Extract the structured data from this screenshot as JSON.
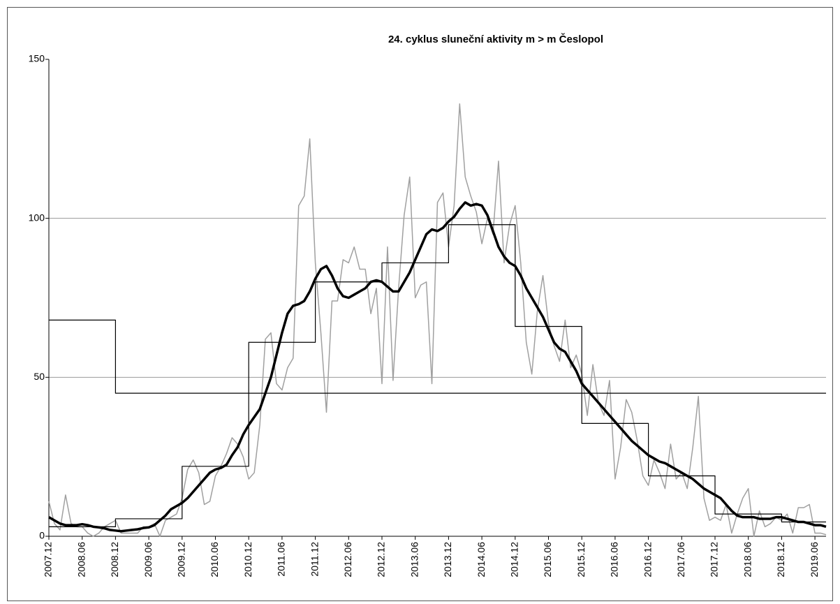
{
  "chart_data": {
    "type": "line",
    "title": "24. cyklus sluneční aktivity m > m Česlopol",
    "categories": [
      "2007.12",
      null,
      null,
      null,
      null,
      null,
      "2008.06",
      null,
      null,
      null,
      null,
      null,
      "2008.12",
      null,
      null,
      null,
      null,
      null,
      "2009.06",
      null,
      null,
      null,
      null,
      null,
      "2009.12",
      null,
      null,
      null,
      null,
      null,
      "2010.06",
      null,
      null,
      null,
      null,
      null,
      "2010.12",
      null,
      null,
      null,
      null,
      null,
      "2011.06",
      null,
      null,
      null,
      null,
      null,
      "2011.12",
      null,
      null,
      null,
      null,
      null,
      "2012.06",
      null,
      null,
      null,
      null,
      null,
      "2012.12",
      null,
      null,
      null,
      null,
      null,
      "2013.06",
      null,
      null,
      null,
      null,
      null,
      "2013.12",
      null,
      null,
      null,
      null,
      null,
      "2014.06",
      null,
      null,
      null,
      null,
      null,
      "2014.12",
      null,
      null,
      null,
      null,
      null,
      "2015.06",
      null,
      null,
      null,
      null,
      null,
      "2015.12",
      null,
      null,
      null,
      null,
      null,
      "2016.06",
      null,
      null,
      null,
      null,
      null,
      "2016.12",
      null,
      null,
      null,
      null,
      null,
      "2017.06",
      null,
      null,
      null,
      null,
      null,
      "2017.12",
      null,
      null,
      null,
      null,
      null,
      "2018.06",
      null,
      null,
      null,
      null,
      null,
      "2018.12",
      null,
      null,
      null,
      null,
      null,
      "2019.06",
      null,
      null
    ],
    "series": [
      {
        "color": "#a0a0a0",
        "width": 1.5,
        "step": false,
        "values": [
          11,
          4,
          2,
          13,
          4,
          3,
          3,
          1,
          0,
          1,
          3,
          4,
          5,
          1,
          1,
          1,
          1,
          3,
          3,
          4,
          0,
          5,
          6,
          7,
          12,
          21,
          24,
          20,
          10,
          11,
          19,
          22,
          26,
          31,
          29,
          25,
          18,
          20,
          35,
          62,
          64,
          48,
          46,
          53,
          56,
          104,
          107,
          125,
          86,
          64,
          39,
          74,
          74,
          87,
          86,
          91,
          84,
          84,
          70,
          78,
          48,
          91,
          49,
          78,
          101,
          113,
          75,
          79,
          80,
          48,
          105,
          108,
          91,
          104,
          136,
          113,
          107,
          102,
          92,
          100,
          95,
          118,
          86,
          98,
          104,
          86,
          61,
          51,
          71,
          82,
          67,
          60,
          55,
          68,
          53,
          57,
          51,
          38,
          54,
          42,
          38,
          49,
          18,
          28,
          43,
          39,
          30,
          19,
          16,
          24,
          20,
          15,
          29,
          18,
          20,
          15,
          28,
          44,
          12,
          5,
          6,
          5,
          10,
          1,
          7,
          12,
          15,
          0,
          8,
          3,
          4,
          6,
          5,
          7,
          1,
          9,
          9,
          10,
          1,
          1,
          0.5
        ]
      },
      {
        "color": "#000000",
        "width": 1.2,
        "step": true,
        "values": [
          68,
          68,
          68,
          68,
          68,
          68,
          68,
          68,
          68,
          68,
          68,
          68,
          45,
          45,
          45,
          45,
          45,
          45,
          45,
          45,
          45,
          45,
          45,
          45,
          45,
          45,
          45,
          45,
          45,
          45,
          45,
          45,
          45,
          45,
          45,
          45,
          45,
          45,
          45,
          45,
          45,
          45,
          45,
          45,
          45,
          45,
          45,
          45,
          45,
          45,
          45,
          45,
          45,
          45,
          45,
          45,
          45,
          45,
          45,
          45,
          45,
          45,
          45,
          45,
          45,
          45,
          45,
          45,
          45,
          45,
          45,
          45,
          45,
          45,
          45,
          45,
          45,
          45,
          45,
          45,
          45,
          45,
          45,
          45,
          45,
          45,
          45,
          45,
          45,
          45,
          45,
          45,
          45,
          45,
          45,
          45,
          45,
          45,
          45,
          45,
          45,
          45,
          45,
          45,
          45,
          45,
          45,
          45,
          45,
          45,
          45,
          45,
          45,
          45,
          45,
          45,
          45,
          45,
          45,
          45,
          45,
          45,
          45,
          45,
          45,
          45,
          45,
          45,
          45,
          45,
          45,
          45,
          45,
          45,
          45,
          45,
          45,
          45,
          45,
          45,
          45
        ]
      },
      {
        "color": "#000000",
        "width": 1.2,
        "step": true,
        "values": [
          3,
          3,
          3,
          3,
          3,
          3,
          3,
          3,
          3,
          3,
          3,
          3,
          5.5,
          5.5,
          5.5,
          5.5,
          5.5,
          5.5,
          5.5,
          5.5,
          5.5,
          5.5,
          5.5,
          5.5,
          22,
          22,
          22,
          22,
          22,
          22,
          22,
          22,
          22,
          22,
          22,
          22,
          61,
          61,
          61,
          61,
          61,
          61,
          61,
          61,
          61,
          61,
          61,
          61,
          80,
          80,
          80,
          80,
          80,
          80,
          80,
          80,
          80,
          80,
          80,
          80,
          86,
          86,
          86,
          86,
          86,
          86,
          86,
          86,
          86,
          86,
          86,
          86,
          98,
          98,
          98,
          98,
          98,
          98,
          98,
          98,
          98,
          98,
          98,
          98,
          66,
          66,
          66,
          66,
          66,
          66,
          66,
          66,
          66,
          66,
          66,
          66,
          35.5,
          35.5,
          35.5,
          35.5,
          35.5,
          35.5,
          35.5,
          35.5,
          35.5,
          35.5,
          35.5,
          35.5,
          19,
          19,
          19,
          19,
          19,
          19,
          19,
          19,
          19,
          19,
          19,
          19,
          7,
          7,
          7,
          7,
          7,
          7,
          7,
          7,
          7,
          7,
          7,
          7,
          4.5,
          4.5,
          4.5,
          4.5,
          4.5,
          4.5,
          4.5,
          4.5,
          4.5
        ]
      },
      {
        "color": "#000000",
        "width": 3.5,
        "step": false,
        "values": [
          6,
          5,
          4,
          3.5,
          3.5,
          3.5,
          3.8,
          3.5,
          3,
          2.8,
          2.5,
          2,
          1.8,
          1.6,
          1.8,
          2,
          2.2,
          2.6,
          2.8,
          3.5,
          5,
          6.5,
          8.5,
          9.5,
          10.5,
          12,
          14,
          16,
          18,
          20,
          21,
          21.5,
          22.5,
          25.5,
          28,
          32,
          35,
          37.5,
          40,
          45,
          50,
          57,
          64,
          70,
          72.5,
          73,
          74,
          77,
          81,
          84,
          85,
          82,
          78,
          75.5,
          75,
          76,
          77,
          78,
          80,
          80.5,
          80,
          78.5,
          77,
          77,
          80,
          83,
          87,
          91,
          95,
          96.5,
          96,
          97,
          99,
          100.5,
          103,
          105,
          104,
          104.5,
          104,
          101,
          96,
          91,
          88,
          86,
          85,
          82,
          78,
          75,
          72,
          69,
          65,
          61,
          59,
          58,
          55,
          52,
          48,
          46,
          44,
          42,
          40,
          38,
          36,
          34,
          32,
          30,
          28.5,
          27,
          25.5,
          24.5,
          23.5,
          23,
          22,
          21,
          20,
          19,
          18,
          16.5,
          15,
          14,
          13,
          12,
          10,
          8,
          6.5,
          6,
          6,
          6,
          5.5,
          5.5,
          5.5,
          6,
          6,
          5.5,
          5,
          4.5,
          4.5,
          4,
          3.5,
          3.5,
          3
        ]
      }
    ],
    "ylim": [
      0,
      150
    ],
    "yticks": [
      0,
      50,
      100,
      150
    ],
    "grid": true
  }
}
